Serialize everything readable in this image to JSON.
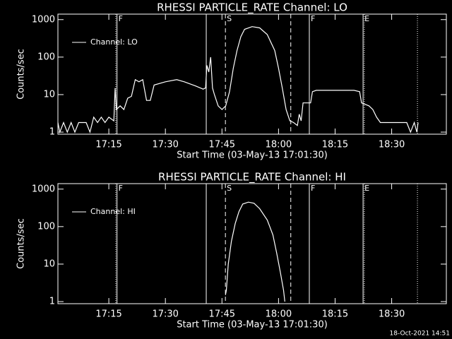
{
  "chart_data": [
    {
      "type": "line",
      "title": "RHESSI PARTICLE_RATE Channel: LO",
      "x_label": "Start Time (03-May-13 17:01:30)",
      "y_label": "Counts/sec",
      "log_y": true,
      "ylim": [
        0.88,
        1400
      ],
      "yticks": [
        1,
        10,
        100,
        1000
      ],
      "xlim": [
        "17:01:30",
        "18:44:30"
      ],
      "xticks": [
        "17:15",
        "17:30",
        "17:45",
        "18:00",
        "18:15",
        "18:30"
      ],
      "legend": "top-left",
      "markers": [
        {
          "x": "17:16:50",
          "style": "dotted"
        },
        {
          "x": "17:17:10",
          "style": "solid",
          "label": "F"
        },
        {
          "x": "17:40:50",
          "style": "solid"
        },
        {
          "x": "17:45:55",
          "style": "dashed",
          "label": "S"
        },
        {
          "x": "18:03:15",
          "style": "dashed"
        },
        {
          "x": "18:08:10",
          "style": "solid",
          "label": "F"
        },
        {
          "x": "18:22:25",
          "style": "solid",
          "label": "E"
        },
        {
          "x": "18:22:45",
          "style": "dotted"
        },
        {
          "x": "18:36:50",
          "style": "dotted"
        }
      ],
      "series": [
        {
          "name": "Channel: LO",
          "color": "#ffffff",
          "x": [
            "17:01:30",
            "17:02",
            "17:03",
            "17:04",
            "17:05",
            "17:06",
            "17:07",
            "17:09",
            "17:10",
            "17:11",
            "17:12",
            "17:13",
            "17:14",
            "17:15",
            "17:16:20",
            "17:16:40",
            "17:17",
            "17:18",
            "17:19",
            "17:20",
            "17:21",
            "17:22",
            "17:23",
            "17:24",
            "17:25",
            "17:26",
            "17:27",
            "17:30",
            "17:33",
            "17:35",
            "17:38",
            "17:40",
            "17:40:40",
            "17:41",
            "17:41:30",
            "17:42",
            "17:42:30",
            "17:43",
            "17:44",
            "17:45",
            "17:46",
            "17:47",
            "17:48",
            "17:49",
            "17:50",
            "17:51",
            "17:53",
            "17:55",
            "17:57",
            "17:59",
            "18:00",
            "18:01",
            "18:02",
            "18:03",
            "18:04",
            "18:05",
            "18:05:30",
            "18:06",
            "18:06:30",
            "18:08",
            "18:08:30",
            "18:09",
            "18:10",
            "18:15",
            "18:20",
            "18:21:30",
            "18:22",
            "18:24",
            "18:25",
            "18:26",
            "18:27",
            "18:34",
            "18:35",
            "18:36",
            "18:36:40",
            "18:37"
          ],
          "values": [
            1.8,
            1,
            1.8,
            1,
            1.8,
            1,
            1.8,
            1.8,
            1,
            2.5,
            1.8,
            2.5,
            1.8,
            2.5,
            2,
            15,
            4,
            5,
            4,
            8,
            9,
            25,
            22,
            25,
            7,
            7,
            18,
            22,
            25,
            22,
            17,
            14,
            15,
            60,
            40,
            100,
            15,
            10,
            5,
            4,
            5,
            12,
            50,
            150,
            350,
            550,
            650,
            600,
            400,
            150,
            50,
            15,
            4,
            2,
            1.8,
            1.5,
            3,
            2,
            6,
            6,
            6,
            12,
            13,
            13,
            13,
            12,
            6,
            5,
            4,
            2.5,
            1.8,
            1.8,
            1,
            1.8,
            1,
            1.8
          ]
        }
      ]
    },
    {
      "type": "line",
      "title": "RHESSI PARTICLE_RATE Channel: HI",
      "x_label": "Start Time (03-May-13 17:01:30)",
      "y_label": "Counts/sec",
      "log_y": true,
      "ylim": [
        0.88,
        1400
      ],
      "yticks": [
        1,
        10,
        100,
        1000
      ],
      "xlim": [
        "17:01:30",
        "18:44:30"
      ],
      "xticks": [
        "17:15",
        "17:30",
        "17:45",
        "18:00",
        "18:15",
        "18:30"
      ],
      "legend": "top-left",
      "markers": [
        {
          "x": "17:16:50",
          "style": "dotted"
        },
        {
          "x": "17:17:10",
          "style": "solid",
          "label": "F"
        },
        {
          "x": "17:40:50",
          "style": "solid"
        },
        {
          "x": "17:45:55",
          "style": "dashed",
          "label": "S"
        },
        {
          "x": "18:03:15",
          "style": "dashed"
        },
        {
          "x": "18:08:10",
          "style": "solid",
          "label": "F"
        },
        {
          "x": "18:22:25",
          "style": "solid",
          "label": "E"
        },
        {
          "x": "18:22:45",
          "style": "dotted"
        },
        {
          "x": "18:36:50",
          "style": "dotted"
        }
      ],
      "series": [
        {
          "name": "Channel: HI",
          "color": "#ffffff",
          "x": [
            "17:45:55",
            "17:46:10",
            "17:46:40",
            "17:47:30",
            "17:48:30",
            "17:49:30",
            "17:50:30",
            "17:52",
            "17:53:30",
            "17:55",
            "17:57",
            "17:58:30",
            "17:59:30",
            "18:00:30",
            "18:01:20",
            "18:01:40"
          ],
          "values": [
            1.5,
            2,
            10,
            40,
            120,
            250,
            400,
            450,
            420,
            300,
            150,
            60,
            20,
            6,
            2,
            1
          ]
        }
      ]
    }
  ],
  "footer": "18-Oct-2021 14:51"
}
